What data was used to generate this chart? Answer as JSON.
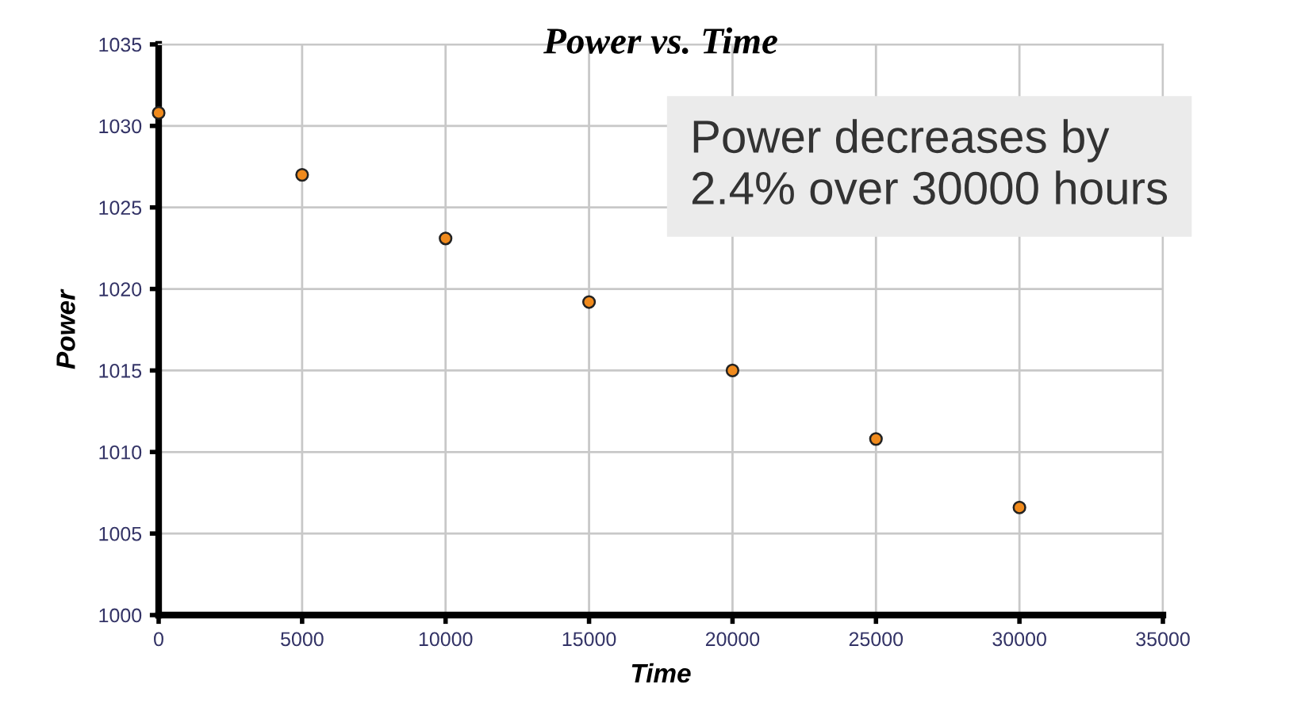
{
  "chart_data": {
    "type": "scatter",
    "title": "Power vs. Time",
    "xlabel": "Time",
    "ylabel": "Power",
    "x": [
      0,
      5000,
      10000,
      15000,
      20000,
      25000,
      30000
    ],
    "series": [
      {
        "color": "#f08a1c",
        "values": [
          1030.8,
          1027.0,
          1023.1,
          1019.2,
          1015.0,
          1010.8,
          1006.6
        ]
      }
    ],
    "xlim": [
      0,
      35000
    ],
    "xticks": [
      0,
      5000,
      10000,
      15000,
      20000,
      25000,
      30000,
      35000
    ],
    "ylim": [
      1000,
      1035
    ],
    "yticks": [
      1000,
      1005,
      1010,
      1015,
      1020,
      1025,
      1030,
      1035
    ],
    "grid": true,
    "marker": "circle",
    "legend": false,
    "annotations": [
      "Power decreases by\n2.4% over 30000 hours"
    ]
  }
}
